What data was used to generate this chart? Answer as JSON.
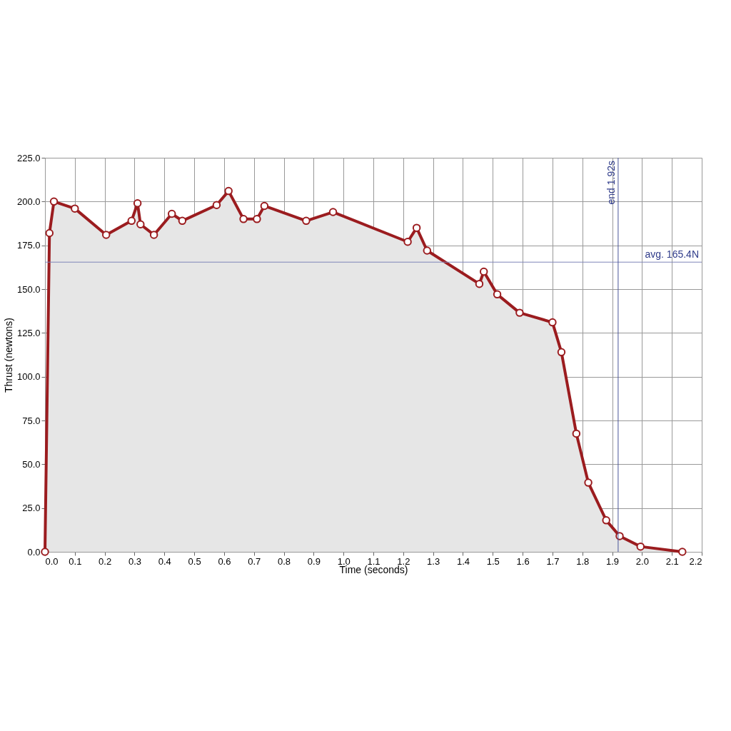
{
  "chart_data": {
    "type": "area",
    "xlabel": "Time (seconds)",
    "ylabel": "Thrust (newtons)",
    "series": [
      {
        "color": "#9b1c1f",
        "x": [
          0,
          0.015,
          0.03,
          0.1,
          0.205,
          0.29,
          0.31,
          0.32,
          0.365,
          0.425,
          0.46,
          0.575,
          0.615,
          0.665,
          0.71,
          0.735,
          0.875,
          0.965,
          1.215,
          1.245,
          1.28,
          1.455,
          1.47,
          1.515,
          1.59,
          1.7,
          1.73,
          1.78,
          1.82,
          1.88,
          1.925,
          1.995,
          2.135
        ],
        "values": [
          0,
          182,
          200,
          196,
          181,
          189,
          199,
          187,
          181,
          193,
          189,
          198,
          206,
          190,
          190,
          197.5,
          189,
          194,
          177,
          185,
          172,
          153,
          160,
          147,
          136.5,
          131,
          114,
          67.5,
          39.5,
          18,
          9,
          3,
          0
        ]
      }
    ],
    "xlim": [
      0,
      2.2
    ],
    "xticks": [
      {
        "value": 0,
        "label": "0.0"
      },
      0.1,
      0.2,
      0.3,
      0.4,
      0.5,
      0.6,
      0.7,
      0.8,
      0.9,
      {
        "value": 1,
        "label": "1.0"
      },
      1.1,
      1.2,
      1.3,
      1.4,
      1.5,
      1.6,
      1.7,
      1.8,
      1.9,
      {
        "value": 2,
        "label": "2.0"
      },
      2.1,
      2.2
    ],
    "ylim": [
      0,
      225
    ],
    "yticks": [
      {
        "value": 0,
        "label": "0.0"
      },
      {
        "value": 25,
        "label": "25.0"
      },
      {
        "value": 50,
        "label": "50.0"
      },
      {
        "value": 75,
        "label": "75.0"
      },
      {
        "value": 100,
        "label": "100.0"
      },
      {
        "value": 125,
        "label": "125.0"
      },
      {
        "value": 150,
        "label": "150.0"
      },
      {
        "value": 175,
        "label": "175.0"
      },
      {
        "value": 200,
        "label": "200.0"
      },
      {
        "value": 225,
        "label": "225.0"
      }
    ],
    "ref_lines": [
      {
        "axis": "y",
        "value": 165.4,
        "label": "avg. 165.4N",
        "color": "#7f86b8"
      },
      {
        "axis": "x",
        "value": 1.92,
        "label": "end 1.92s",
        "color": "#4a5599"
      }
    ],
    "grid": true,
    "marker": "circle",
    "line_style": "solid"
  }
}
